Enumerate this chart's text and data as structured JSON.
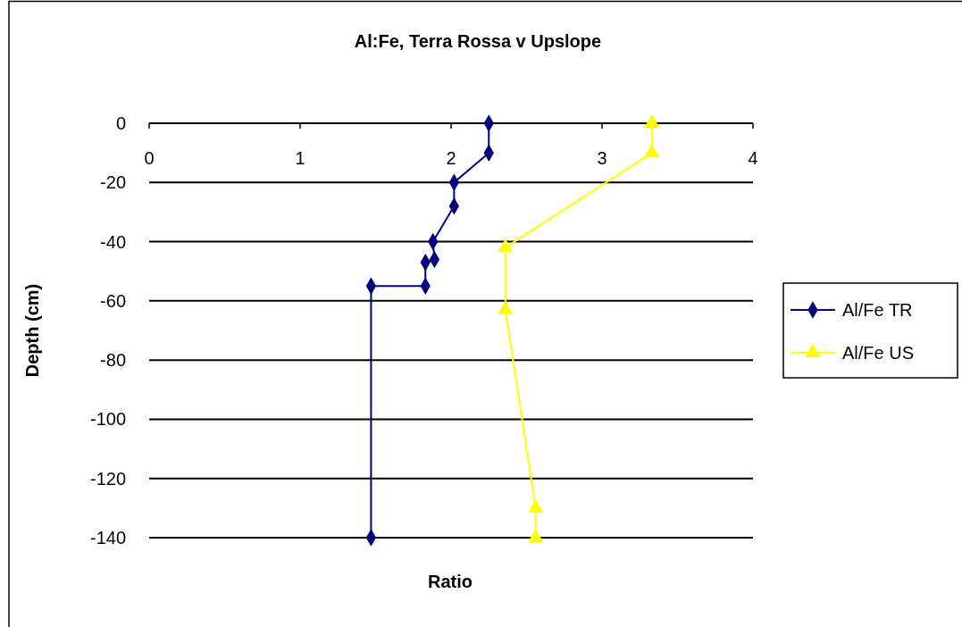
{
  "chart_data": {
    "type": "line",
    "title": "Al:Fe, Terra Rossa v Upslope",
    "xlabel": "Ratio",
    "ylabel": "Depth (cm)",
    "xlim": [
      0,
      4
    ],
    "xticks": [
      0,
      1,
      2,
      3,
      4
    ],
    "ylim": [
      -140,
      0
    ],
    "yticks": [
      -140,
      -120,
      -100,
      -80,
      -60,
      -40,
      -20,
      0
    ],
    "grid": "y",
    "legend": "right",
    "series": [
      {
        "name": "Al/Fe TR",
        "color": "#000080",
        "marker": "diamond",
        "x": [
          2.25,
          2.25,
          2.02,
          2.02,
          1.88,
          1.89,
          1.83,
          1.83,
          1.47,
          1.47
        ],
        "values": [
          0,
          -10,
          -20,
          -28,
          -40,
          -46,
          -47,
          -55,
          -55,
          -140
        ]
      },
      {
        "name": "Al/Fe US",
        "color": "#ffff00",
        "marker": "triangle",
        "x": [
          3.33,
          3.33,
          2.36,
          2.36,
          2.56,
          2.56
        ],
        "values": [
          0,
          -10,
          -42,
          -63,
          -130,
          -140
        ]
      }
    ]
  }
}
